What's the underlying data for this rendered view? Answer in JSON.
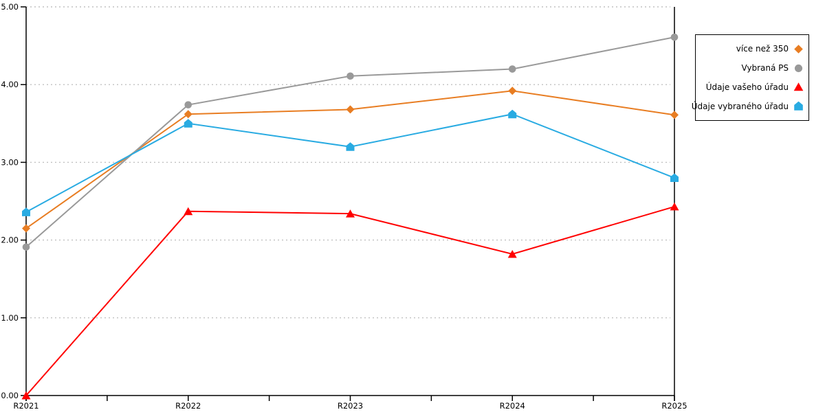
{
  "chart_data": {
    "type": "line",
    "title": "",
    "xlabel": "",
    "ylabel": "",
    "categories": [
      "R2021",
      "R2022",
      "R2023",
      "R2024",
      "R2025"
    ],
    "series": [
      {
        "name": "více než 350",
        "marker": "diamond",
        "color": "#E87D22",
        "values": [
          2.15,
          3.62,
          3.68,
          3.92,
          3.61
        ]
      },
      {
        "name": "Vybraná PS",
        "marker": "circle",
        "color": "#999999",
        "values": [
          1.91,
          3.74,
          4.11,
          4.2,
          4.61
        ]
      },
      {
        "name": "Údaje vašeho úřadu",
        "marker": "triangle",
        "color": "#FF0000",
        "values": [
          0.0,
          2.37,
          2.34,
          1.82,
          2.43
        ]
      },
      {
        "name": "Údaje vybraného úřadu",
        "marker": "pentagon",
        "color": "#29ABE2",
        "values": [
          2.36,
          3.5,
          3.2,
          3.62,
          2.8
        ]
      }
    ],
    "y_ticks": [
      "0.00",
      "1.00",
      "2.00",
      "3.00",
      "4.00",
      "5.00"
    ],
    "ylim": [
      0,
      5
    ],
    "grid": "horizontal-dotted",
    "legend_position": "right"
  },
  "colors": {
    "axis": "#000000",
    "grid": "#c0c0c0",
    "background": "#ffffff",
    "text": "#000000"
  }
}
